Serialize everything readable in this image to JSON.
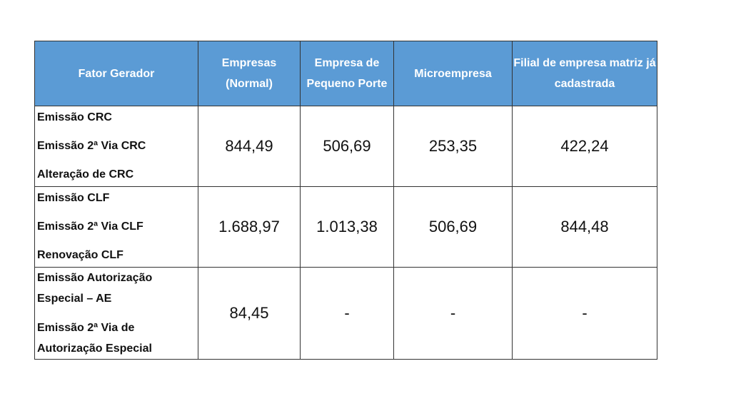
{
  "table": {
    "headers": [
      "Fator Gerador",
      "Empresas (Normal)",
      "Empresa de Pequeno Porte",
      "Microempresa",
      "Filial de empresa matriz já cadastrada"
    ],
    "rows": [
      {
        "factors": [
          "Emissão CRC",
          "Emissão 2ª Via CRC",
          "Alteração de CRC"
        ],
        "values": [
          "844,49",
          "506,69",
          "253,35",
          "422,24"
        ]
      },
      {
        "factors": [
          "Emissão CLF",
          "Emissão 2ª Via CLF",
          "Renovação CLF"
        ],
        "values": [
          "1.688,97",
          "1.013,38",
          "506,69",
          "844,48"
        ]
      },
      {
        "factors": [
          "Emissão Autorização",
          "Especial – AE",
          "Emissão 2ª Via de",
          "Autorização Especial"
        ],
        "values": [
          "84,45",
          "-",
          "-",
          "-"
        ]
      }
    ]
  },
  "colors": {
    "header_bg": "#5b9bd5",
    "header_text": "#ffffff",
    "border": "#333333"
  }
}
